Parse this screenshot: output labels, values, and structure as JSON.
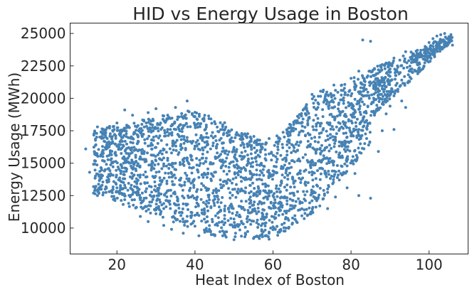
{
  "chart_data": {
    "type": "scatter",
    "title": "HID vs Energy Usage in Boston",
    "xlabel": "Heat Index of Boston",
    "ylabel": "Energy Usage (MWh)",
    "xlim": [
      8,
      110
    ],
    "ylim": [
      8000,
      25800
    ],
    "xticks": [
      20,
      40,
      60,
      80,
      100
    ],
    "yticks": [
      10000,
      12500,
      15000,
      17500,
      20000,
      22500,
      25000
    ],
    "grid": false,
    "legend": "none",
    "marker_color": "#4682b4",
    "shape_description": "Dense U-shaped cloud: energy usage spans roughly 10000-19000 MWh for heat index 14-55, dips to a minimum near 50-60, then rises steeply above heat index 70, reaching about 24500 MWh near 104.",
    "series": [
      {
        "values": [
          [
            12,
            16100
          ],
          [
            13,
            14300
          ],
          [
            14,
            12700
          ],
          [
            14,
            13200
          ],
          [
            15,
            17800
          ],
          [
            15,
            12900
          ],
          [
            16,
            14100
          ],
          [
            17,
            13000
          ],
          [
            18,
            15600
          ],
          [
            18,
            12800
          ],
          [
            20,
            18100
          ],
          [
            20,
            13100
          ],
          [
            21,
            14200
          ],
          [
            22,
            17700
          ],
          [
            22,
            19100
          ],
          [
            22,
            12500
          ],
          [
            23,
            16200
          ],
          [
            23,
            11900
          ],
          [
            24,
            15100
          ],
          [
            24,
            18700
          ],
          [
            25,
            11600
          ],
          [
            25,
            13800
          ],
          [
            26,
            17400
          ],
          [
            26,
            10900
          ],
          [
            27,
            15900
          ],
          [
            27,
            12300
          ],
          [
            28,
            18900
          ],
          [
            28,
            10500
          ],
          [
            29,
            14700
          ],
          [
            29,
            16800
          ],
          [
            30,
            11400
          ],
          [
            30,
            19200
          ],
          [
            31,
            13300
          ],
          [
            31,
            17100
          ],
          [
            32,
            10200
          ],
          [
            32,
            15400
          ],
          [
            33,
            18400
          ],
          [
            33,
            12100
          ],
          [
            34,
            14900
          ],
          [
            34,
            9900
          ],
          [
            35,
            16600
          ],
          [
            35,
            19300
          ],
          [
            36,
            11200
          ],
          [
            36,
            13700
          ],
          [
            37,
            17900
          ],
          [
            37,
            9600
          ],
          [
            38,
            15200
          ],
          [
            38,
            19800
          ],
          [
            39,
            12400
          ],
          [
            39,
            10300
          ],
          [
            40,
            16300
          ],
          [
            40,
            18600
          ],
          [
            41,
            13900
          ],
          [
            41,
            9400
          ],
          [
            42,
            15700
          ],
          [
            42,
            11100
          ],
          [
            43,
            17300
          ],
          [
            43,
            12900
          ],
          [
            44,
            9700
          ],
          [
            44,
            16100
          ],
          [
            45,
            14300
          ],
          [
            45,
            18200
          ],
          [
            46,
            10800
          ],
          [
            46,
            12200
          ],
          [
            47,
            15900
          ],
          [
            47,
            17600
          ],
          [
            48,
            9300
          ],
          [
            48,
            13600
          ],
          [
            49,
            11700
          ],
          [
            49,
            16700
          ],
          [
            50,
            14800
          ],
          [
            50,
            9100
          ],
          [
            51,
            12700
          ],
          [
            51,
            17200
          ],
          [
            52,
            10400
          ],
          [
            52,
            15300
          ],
          [
            53,
            13100
          ],
          [
            53,
            9500
          ],
          [
            54,
            16400
          ],
          [
            54,
            11900
          ],
          [
            55,
            14100
          ],
          [
            55,
            9200
          ],
          [
            56,
            12500
          ],
          [
            56,
            16800
          ],
          [
            57,
            10700
          ],
          [
            57,
            15000
          ],
          [
            58,
            13400
          ],
          [
            58,
            9400
          ],
          [
            59,
            16900
          ],
          [
            59,
            11600
          ],
          [
            60,
            14400
          ],
          [
            60,
            10100
          ],
          [
            61,
            12800
          ],
          [
            61,
            17100
          ],
          [
            62,
            9800
          ],
          [
            62,
            15600
          ],
          [
            63,
            13900
          ],
          [
            63,
            11300
          ],
          [
            64,
            17400
          ],
          [
            64,
            10600
          ],
          [
            65,
            15200
          ],
          [
            65,
            12700
          ],
          [
            66,
            18100
          ],
          [
            66,
            10500
          ],
          [
            67,
            14200
          ],
          [
            67,
            16600
          ],
          [
            68,
            11400
          ],
          [
            68,
            19200
          ],
          [
            69,
            13500
          ],
          [
            69,
            17300
          ],
          [
            70,
            20300
          ],
          [
            70,
            12100
          ],
          [
            71,
            15900
          ],
          [
            71,
            18700
          ],
          [
            72,
            11700
          ],
          [
            72,
            14600
          ],
          [
            73,
            19700
          ],
          [
            73,
            12900
          ],
          [
            74,
            17100
          ],
          [
            74,
            11500
          ],
          [
            75,
            20100
          ],
          [
            75,
            14000
          ],
          [
            76,
            16800
          ],
          [
            76,
            12400
          ],
          [
            77,
            19000
          ],
          [
            77,
            13700
          ],
          [
            78,
            18200
          ],
          [
            78,
            20600
          ],
          [
            79,
            15400
          ],
          [
            79,
            13100
          ],
          [
            80,
            19500
          ],
          [
            80,
            17100
          ],
          [
            81,
            21100
          ],
          [
            81,
            14200
          ],
          [
            82,
            22100
          ],
          [
            82,
            12500
          ],
          [
            83,
            18300
          ],
          [
            83,
            24500
          ],
          [
            84,
            20200
          ],
          [
            84,
            16900
          ],
          [
            85,
            24400
          ],
          [
            85,
            12300
          ],
          [
            86,
            22300
          ],
          [
            86,
            18700
          ],
          [
            87,
            20600
          ],
          [
            87,
            15900
          ],
          [
            88,
            22600
          ],
          [
            88,
            17500
          ],
          [
            89,
            20900
          ],
          [
            89,
            18800
          ],
          [
            90,
            21700
          ],
          [
            90,
            19400
          ],
          [
            91,
            23100
          ],
          [
            91,
            17600
          ],
          [
            92,
            22400
          ],
          [
            92,
            20700
          ],
          [
            93,
            19800
          ],
          [
            93,
            21400
          ],
          [
            94,
            23600
          ],
          [
            94,
            19300
          ],
          [
            95,
            22100
          ],
          [
            95,
            21300
          ],
          [
            96,
            23400
          ],
          [
            96,
            22800
          ],
          [
            97,
            22600
          ],
          [
            97,
            23700
          ],
          [
            98,
            23200
          ],
          [
            98,
            22200
          ],
          [
            99,
            24000
          ],
          [
            99,
            23500
          ],
          [
            100,
            23800
          ],
          [
            100,
            24300
          ],
          [
            101,
            23600
          ],
          [
            101,
            24600
          ],
          [
            102,
            24100
          ],
          [
            102,
            24800
          ],
          [
            103,
            24900
          ],
          [
            103,
            24400
          ],
          [
            104,
            25000
          ],
          [
            104,
            24200
          ],
          [
            105,
            24500
          ],
          [
            106,
            24100
          ]
        ]
      }
    ]
  }
}
